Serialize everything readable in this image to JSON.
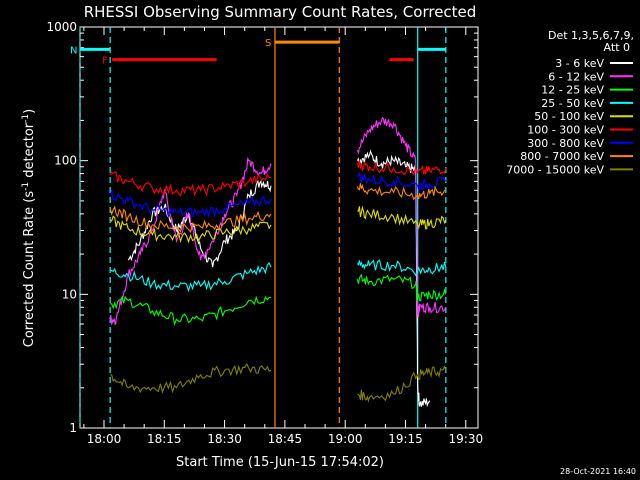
{
  "chart_data": {
    "type": "line",
    "title": "RHESSI Observing Summary Count Rates, Corrected",
    "xlabel": "Start Time (15-Jun-15 17:54:02)",
    "ylabel_main": "Corrected Count Rate (s",
    "ylabel_sup1": "-1",
    "ylabel_mid": " detector",
    "ylabel_sup2": "-1",
    "ylabel_end": ")",
    "yscale": "log",
    "ylim": [
      1,
      1000
    ],
    "xlim": [
      "17:54:02",
      "19:33:00"
    ],
    "xtick_labels": [
      "18:00",
      "18:15",
      "18:30",
      "18:45",
      "19:00",
      "19:15",
      "19:30"
    ],
    "ytick_labels": [
      "1",
      "10",
      "100",
      "1000"
    ],
    "legend_header": [
      "Det 1,3,5,6,7,9,",
      "Att 0"
    ],
    "legend_placement": "right",
    "timestamp": "28-Oct-2021 16:40",
    "series": [
      {
        "name": "3 - 6 keV",
        "color": "#ffffff",
        "t": [
          7.5,
          9,
          12,
          15,
          18,
          21,
          24,
          27,
          30,
          33,
          36,
          39,
          42,
          45,
          47.5,
          48,
          48.5,
          68.5,
          69,
          72,
          75,
          78,
          81,
          83.5,
          84,
          84.5,
          87,
          91
        ],
        "v": [
          null,
          null,
          18,
          25,
          40,
          45,
          30,
          40,
          22,
          16,
          25,
          30,
          55,
          70,
          65,
          null,
          null,
          null,
          100,
          110,
          95,
          100,
          90,
          85,
          2.0,
          1.5,
          1.6,
          null
        ]
      },
      {
        "name": "6 - 12 keV",
        "color": "#ff33ff",
        "t": [
          7.5,
          9,
          12,
          15,
          18,
          21,
          24,
          27,
          30,
          33,
          36,
          39,
          42,
          45,
          47.5,
          48,
          48.5,
          68.5,
          69,
          72,
          75,
          78,
          81,
          83.5,
          84,
          84.5,
          87,
          91
        ],
        "v": [
          6.5,
          6.5,
          14,
          20,
          30,
          60,
          25,
          40,
          18,
          25,
          40,
          55,
          100,
          80,
          95,
          null,
          null,
          null,
          120,
          170,
          200,
          190,
          130,
          100,
          7,
          8,
          8,
          8
        ]
      },
      {
        "name": "12 - 25 keV",
        "color": "#00ff00",
        "t": [
          0,
          7.5,
          12,
          18,
          24,
          30,
          36,
          42,
          47.5,
          48,
          48.5,
          68.5,
          69,
          72,
          78,
          83.5,
          84,
          87,
          91
        ],
        "v": [
          null,
          8.5,
          9,
          7.5,
          6.5,
          6.5,
          7.5,
          9,
          9.5,
          null,
          null,
          null,
          13,
          12.5,
          13,
          12,
          9.5,
          10,
          10
        ]
      },
      {
        "name": "25 - 50 keV",
        "color": "#00ffff",
        "t": [
          0,
          7.5,
          12,
          18,
          24,
          30,
          36,
          42,
          47.5,
          48,
          48.5,
          68.5,
          69,
          72,
          78,
          84,
          87,
          91
        ],
        "v": [
          null,
          15,
          14,
          12,
          11.5,
          11.5,
          12.5,
          14.5,
          16,
          null,
          null,
          null,
          17,
          16.5,
          16.5,
          15,
          15.5,
          16
        ]
      },
      {
        "name": "50 - 100 keV",
        "color": "#dddd00",
        "t": [
          0,
          7.5,
          12,
          18,
          24,
          30,
          36,
          42,
          47.5,
          48,
          48.5,
          68.5,
          69,
          72,
          78,
          84,
          87,
          91
        ],
        "v": [
          null,
          36,
          31,
          28,
          27,
          27,
          29,
          31,
          33,
          null,
          null,
          null,
          42,
          40,
          38,
          33,
          34,
          36
        ]
      },
      {
        "name": "100 - 300 keV",
        "color": "#ff0000",
        "t": [
          0,
          7.5,
          12,
          18,
          24,
          30,
          36,
          42,
          47.5,
          48,
          48.5,
          68.5,
          69,
          72,
          78,
          84,
          87,
          91
        ],
        "v": [
          null,
          78,
          70,
          62,
          60,
          60,
          64,
          70,
          75,
          null,
          null,
          null,
          95,
          90,
          88,
          82,
          84,
          88
        ]
      },
      {
        "name": "300 - 800 keV",
        "color": "#0000ff",
        "t": [
          0,
          7.5,
          12,
          18,
          24,
          30,
          36,
          42,
          47.5,
          48,
          48.5,
          68.5,
          69,
          72,
          78,
          84,
          87,
          91
        ],
        "v": [
          null,
          56,
          50,
          43,
          41,
          41,
          44,
          48,
          52,
          null,
          null,
          null,
          76,
          72,
          70,
          65,
          67,
          70
        ]
      },
      {
        "name": "800 - 7000 keV",
        "color": "#ff8800",
        "t": [
          0,
          7.5,
          12,
          18,
          24,
          30,
          36,
          42,
          47.5,
          48,
          48.5,
          68.5,
          69,
          72,
          78,
          84,
          87,
          91
        ],
        "v": [
          null,
          44,
          38,
          33,
          32,
          32,
          34,
          37,
          40,
          null,
          null,
          null,
          64,
          60,
          58,
          55,
          57,
          60
        ]
      },
      {
        "name": "7000 - 15000 keV",
        "color": "#808000",
        "t": [
          0,
          7.5,
          12,
          18,
          24,
          30,
          36,
          42,
          47.5,
          48,
          48.5,
          68.5,
          69,
          72,
          78,
          84,
          87,
          91
        ],
        "v": [
          null,
          2.5,
          2.0,
          2.0,
          2.0,
          2.5,
          2.7,
          2.8,
          2.7,
          null,
          null,
          null,
          1.8,
          1.7,
          1.8,
          2.5,
          2.6,
          2.7
        ]
      }
    ],
    "segments": [
      {
        "name": "F",
        "color": "#ff0000",
        "t": [
          8,
          34
        ],
        "v": 570
      },
      {
        "name": "",
        "color": "#ff0000",
        "t": [
          77,
          83
        ],
        "v": 570
      },
      {
        "name": "S",
        "color": "#ff8800",
        "t": [
          48.5,
          64.5
        ],
        "v": 770
      },
      {
        "name": "N",
        "color": "#00ffff",
        "t": [
          0,
          7.5
        ],
        "v": 680
      },
      {
        "name": "",
        "color": "#00ffff",
        "t": [
          84,
          91
        ],
        "v": 680
      }
    ],
    "vlines": [
      {
        "t": 0,
        "color": "#00ffff",
        "dashed": true
      },
      {
        "t": 7.5,
        "color": "#00ffff",
        "dashed": true
      },
      {
        "t": 48.5,
        "color": "#ff8800",
        "dashed": false
      },
      {
        "t": 64.5,
        "color": "#ff8800",
        "dashed": true
      },
      {
        "t": 84,
        "color": "#00ffff",
        "dashed": false
      },
      {
        "t": 91,
        "color": "#00ffff",
        "dashed": true
      }
    ]
  }
}
